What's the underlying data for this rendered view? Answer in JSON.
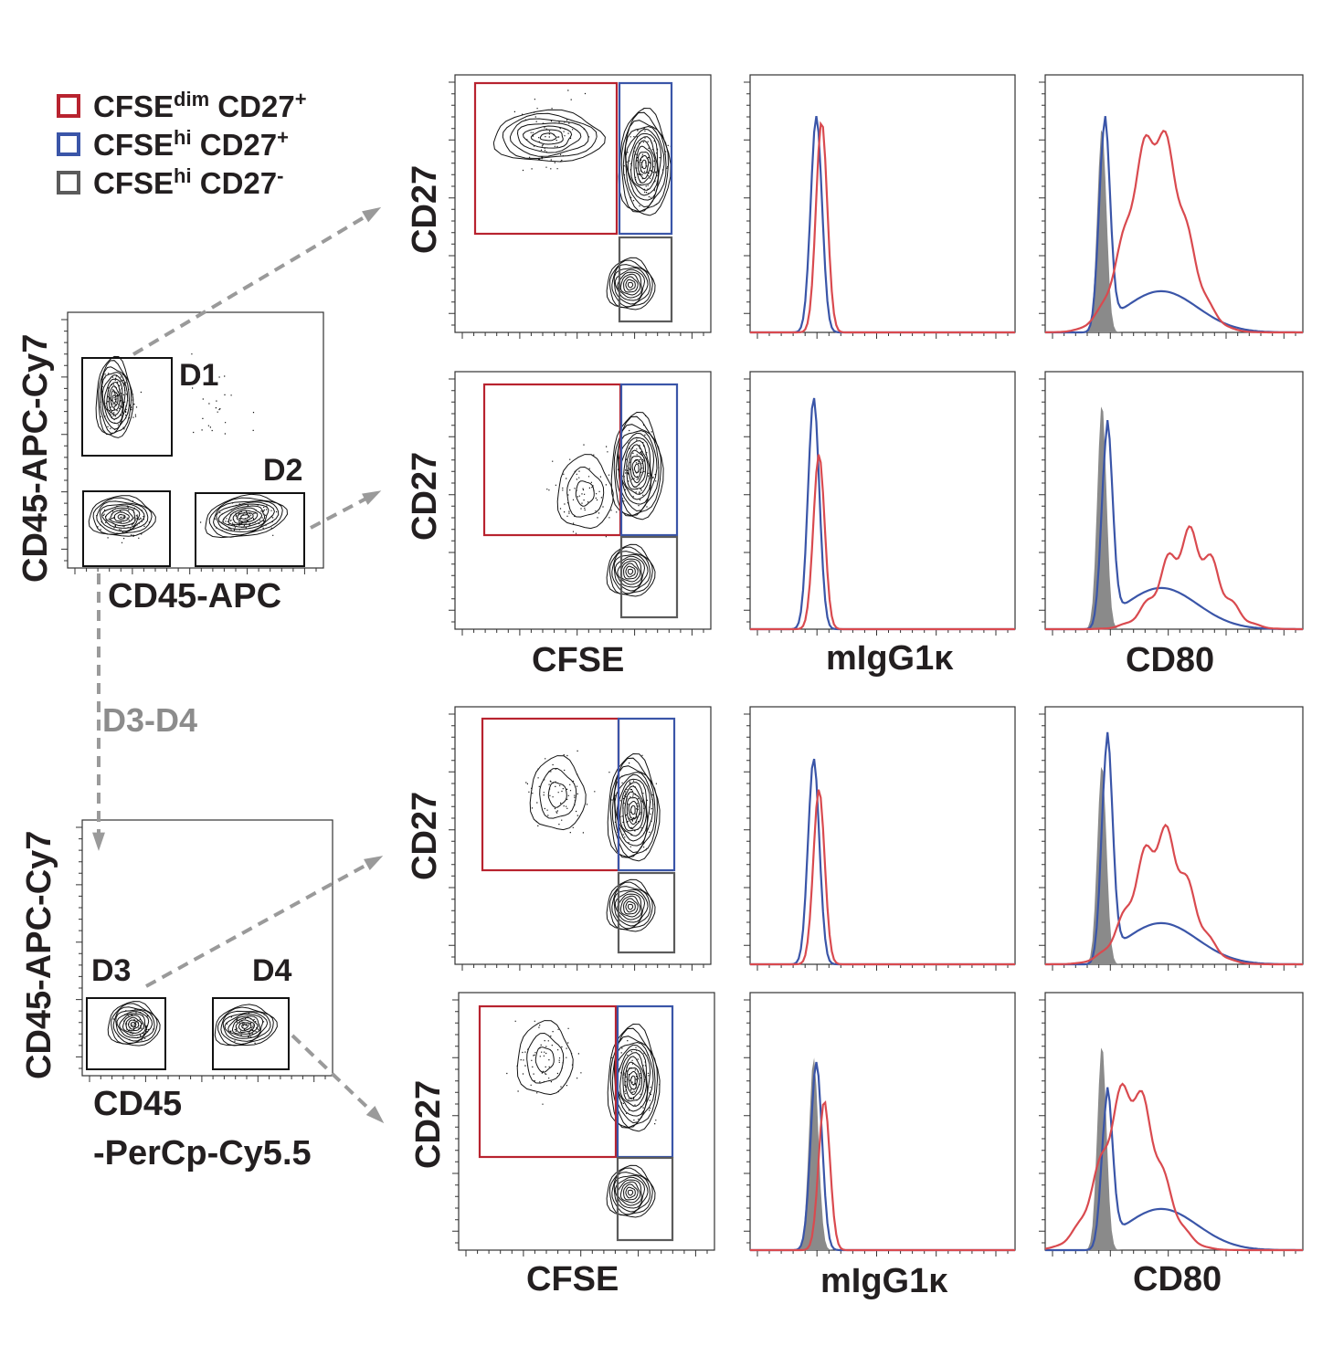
{
  "colors": {
    "red": "#d94a4f",
    "blue": "#3a55a8",
    "gray": "#5b5b5b",
    "fill": "#8a8a8a",
    "arrow": "#9a9a9a",
    "gate_red": "#b8232f"
  },
  "legend": [
    {
      "main": "CFSE",
      "sup": "dim",
      "mid": " CD27",
      "sup2": "+",
      "color": "#b8232f"
    },
    {
      "main": "CFSE",
      "sup": "hi",
      "mid": " CD27",
      "sup2": "+",
      "color": "#3a55a8"
    },
    {
      "main": "CFSE",
      "sup": "hi",
      "mid": " CD27",
      "sup2": "-",
      "color": "#5b5b5b"
    }
  ],
  "left_top": {
    "ylabel": "CD45-APC-Cy7",
    "xlabel": "CD45-APC",
    "gates": [
      "D1",
      "D2"
    ]
  },
  "left_bottom": {
    "ylabel": "CD45-APC-Cy7",
    "xlabel_line1": "CD45",
    "xlabel_line2": "-PerCp-Cy5.5",
    "gates": [
      "D3",
      "D4"
    ]
  },
  "flow_label": "D3-D4",
  "col_xlabels": {
    "cfse": "CFSE",
    "migg": "mIgG1κ",
    "cd80": "CD80"
  },
  "row_ylabel": "CD27",
  "chart_data": [
    {
      "type": "histogram",
      "panel": "D1 mIgG1k",
      "series": [
        {
          "name": "CFSEhi CD27+",
          "peak": 0.84,
          "position": 0.25
        },
        {
          "name": "CFSEdim CD27+",
          "peak": 0.82,
          "position": 0.27
        }
      ]
    },
    {
      "type": "histogram",
      "panel": "D1 CD80",
      "series": [
        {
          "name": "CFSEhi CD27-",
          "peak": 0.8,
          "position": 0.22
        },
        {
          "name": "CFSEhi CD27+",
          "peak": 0.8,
          "position": 0.23
        },
        {
          "name": "CFSEdim CD27+",
          "peak": 0.78,
          "position": 0.43
        }
      ]
    },
    {
      "type": "histogram",
      "panel": "D2 mIgG1k",
      "series": [
        {
          "name": "CFSEhi CD27+",
          "peak": 0.9,
          "position": 0.24
        },
        {
          "name": "CFSEdim CD27+",
          "peak": 0.68,
          "position": 0.26
        }
      ]
    },
    {
      "type": "histogram",
      "panel": "D2 CD80",
      "series": [
        {
          "name": "CFSEhi CD27-",
          "peak": 0.88,
          "position": 0.22
        },
        {
          "name": "CFSEhi CD27+",
          "peak": 0.76,
          "position": 0.24
        },
        {
          "name": "CFSEdim CD27+",
          "peak": 0.35,
          "position": 0.56
        }
      ]
    },
    {
      "type": "histogram",
      "panel": "D3 mIgG1k",
      "series": [
        {
          "name": "CFSEhi CD27+",
          "peak": 0.8,
          "position": 0.24
        },
        {
          "name": "CFSEdim CD27+",
          "peak": 0.68,
          "position": 0.26
        }
      ]
    },
    {
      "type": "histogram",
      "panel": "D3 CD80",
      "series": [
        {
          "name": "CFSEhi CD27-",
          "peak": 0.78,
          "position": 0.22
        },
        {
          "name": "CFSEhi CD27+",
          "peak": 0.85,
          "position": 0.24
        },
        {
          "name": "CFSEdim CD27+",
          "peak": 0.5,
          "position": 0.45
        }
      ]
    },
    {
      "type": "histogram",
      "panel": "D4 mIgG1k",
      "series": [
        {
          "name": "CFSEhi CD27-",
          "peak": 0.75,
          "position": 0.24
        },
        {
          "name": "CFSEhi CD27+",
          "peak": 0.73,
          "position": 0.25
        },
        {
          "name": "CFSEdim CD27+",
          "peak": 0.58,
          "position": 0.28
        }
      ]
    },
    {
      "type": "histogram",
      "panel": "D4 CD80",
      "series": [
        {
          "name": "CFSEhi CD27-",
          "peak": 0.8,
          "position": 0.22
        },
        {
          "name": "CFSEhi CD27+",
          "peak": 0.58,
          "position": 0.24
        },
        {
          "name": "CFSEdim CD27+",
          "peak": 0.63,
          "position": 0.33
        }
      ]
    }
  ]
}
